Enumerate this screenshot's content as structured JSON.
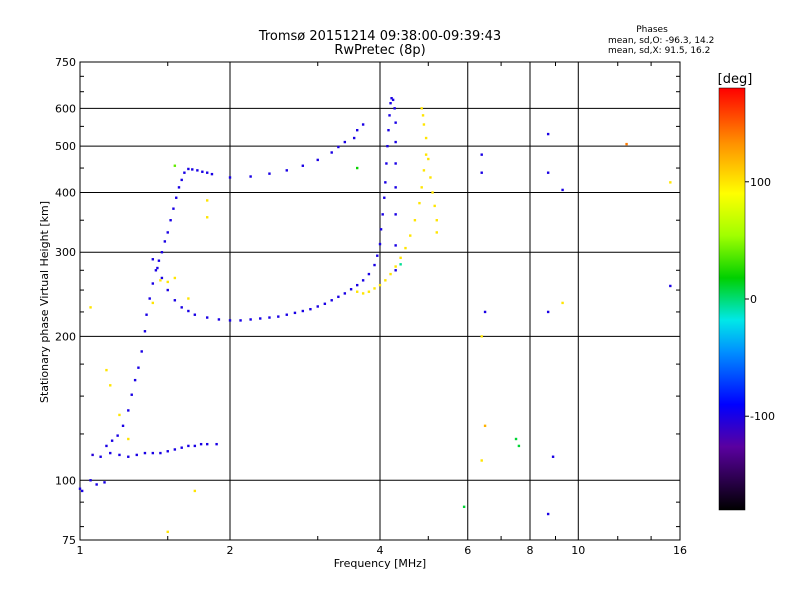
{
  "header": {
    "title": "Tromsø 20151214 09:38:00-09:39:43",
    "subtitle": "RwPretec (8p)"
  },
  "stats": {
    "heading": "Phases",
    "line_o": "mean, sd,O: -96.3, 14.2",
    "line_x": "mean, sd,X:  91.5, 16.2"
  },
  "colorbar": {
    "label": "[deg]",
    "range": [
      -180,
      180
    ],
    "ticks": [
      {
        "value": 100,
        "label": "100"
      },
      {
        "value": 0,
        "label": "0"
      },
      {
        "value": -100,
        "label": "-100"
      }
    ]
  },
  "chart_data": {
    "type": "scatter",
    "title": "Tromsø 20151214 09:38:00-09:39:43",
    "subtitle": "RwPretec (8p)",
    "xlabel": "Frequency [MHz]",
    "ylabel": "Stationary phase Virtual Height [km]",
    "xscale": "log",
    "yscale": "log",
    "xlim": [
      1,
      16
    ],
    "ylim": [
      75,
      750
    ],
    "grid": true,
    "xticks": [
      {
        "value": 1,
        "label": "1"
      },
      {
        "value": 2,
        "label": "2"
      },
      {
        "value": 4,
        "label": "4"
      },
      {
        "value": 6,
        "label": "6"
      },
      {
        "value": 8,
        "label": "8"
      },
      {
        "value": 10,
        "label": "10"
      },
      {
        "value": 16,
        "label": "16"
      }
    ],
    "yticks": [
      {
        "value": 75,
        "label": "75"
      },
      {
        "value": 100,
        "label": "100"
      },
      {
        "value": 200,
        "label": "200"
      },
      {
        "value": 300,
        "label": "300"
      },
      {
        "value": 400,
        "label": "400"
      },
      {
        "value": 500,
        "label": "500"
      },
      {
        "value": 600,
        "label": "600"
      },
      {
        "value": 750,
        "label": "750"
      }
    ],
    "color_scale": {
      "variable": "phase",
      "unit": "deg",
      "min": -180,
      "max": 180
    },
    "series": [
      {
        "points": [
          [
            1.0,
            96,
            -100
          ],
          [
            1.01,
            95,
            -100
          ],
          [
            1.05,
            100,
            -100
          ],
          [
            1.08,
            98,
            -100
          ],
          [
            1.12,
            99,
            -100
          ],
          [
            1.06,
            113,
            -105
          ],
          [
            1.1,
            112,
            -100
          ],
          [
            1.15,
            114,
            -100
          ],
          [
            1.2,
            113,
            -100
          ],
          [
            1.25,
            112,
            -100
          ],
          [
            1.3,
            113,
            -100
          ],
          [
            1.35,
            114,
            -100
          ],
          [
            1.4,
            114,
            -100
          ],
          [
            1.45,
            114,
            -100
          ],
          [
            1.5,
            115,
            -100
          ],
          [
            1.55,
            116,
            -100
          ],
          [
            1.6,
            117,
            -100
          ],
          [
            1.65,
            118,
            -100
          ],
          [
            1.7,
            118,
            -100
          ],
          [
            1.75,
            119,
            -100
          ],
          [
            1.8,
            119,
            -100
          ],
          [
            1.88,
            119,
            -100
          ],
          [
            1.13,
            118,
            -100
          ],
          [
            1.16,
            121,
            -100
          ],
          [
            1.19,
            124,
            -100
          ],
          [
            1.22,
            130,
            -100
          ],
          [
            1.25,
            140,
            -100
          ],
          [
            1.27,
            151,
            -100
          ],
          [
            1.29,
            162,
            -100
          ],
          [
            1.31,
            172,
            -100
          ],
          [
            1.33,
            186,
            -100
          ],
          [
            1.35,
            205,
            -100
          ],
          [
            1.36,
            222,
            -100
          ],
          [
            1.38,
            240,
            -100
          ],
          [
            1.4,
            258,
            -100
          ],
          [
            1.42,
            275,
            -100
          ],
          [
            1.44,
            288,
            -100
          ],
          [
            1.46,
            300,
            -100
          ],
          [
            1.48,
            316,
            -100
          ],
          [
            1.5,
            330,
            -100
          ],
          [
            1.52,
            350,
            -100
          ],
          [
            1.54,
            370,
            -100
          ],
          [
            1.56,
            390,
            -100
          ],
          [
            1.58,
            410,
            -100
          ],
          [
            1.6,
            425,
            -100
          ],
          [
            1.62,
            440,
            -100
          ],
          [
            1.65,
            448,
            -100
          ],
          [
            1.68,
            447,
            -100
          ],
          [
            1.72,
            445,
            -100
          ],
          [
            1.76,
            442,
            -100
          ],
          [
            1.8,
            440,
            -100
          ],
          [
            1.84,
            437,
            -100
          ],
          [
            1.4,
            290,
            -100
          ],
          [
            1.43,
            278,
            -100
          ],
          [
            1.46,
            265,
            -100
          ],
          [
            1.5,
            250,
            -100
          ],
          [
            1.55,
            238,
            -100
          ],
          [
            1.6,
            230,
            -100
          ],
          [
            1.65,
            226,
            -100
          ],
          [
            1.7,
            222,
            -100
          ],
          [
            1.8,
            219,
            -100
          ],
          [
            1.9,
            217,
            -100
          ],
          [
            2.0,
            216,
            -100
          ],
          [
            2.1,
            216,
            -100
          ],
          [
            2.2,
            217,
            -100
          ],
          [
            2.3,
            218,
            -100
          ],
          [
            2.4,
            219,
            -100
          ],
          [
            2.5,
            220,
            -100
          ],
          [
            2.6,
            222,
            -100
          ],
          [
            2.7,
            224,
            -100
          ],
          [
            2.8,
            226,
            -100
          ],
          [
            2.9,
            228,
            -100
          ],
          [
            3.0,
            231,
            -100
          ],
          [
            3.1,
            234,
            -100
          ],
          [
            3.2,
            238,
            -100
          ],
          [
            3.3,
            242,
            -100
          ],
          [
            3.4,
            246,
            -100
          ],
          [
            3.5,
            251,
            -100
          ],
          [
            3.6,
            256,
            -100
          ],
          [
            3.7,
            262,
            -100
          ],
          [
            3.8,
            270,
            -100
          ],
          [
            3.9,
            282,
            -100
          ],
          [
            3.95,
            295,
            -100
          ],
          [
            4.0,
            312,
            -100
          ],
          [
            4.02,
            335,
            -100
          ],
          [
            4.05,
            360,
            -100
          ],
          [
            4.08,
            390,
            -100
          ],
          [
            4.1,
            420,
            -100
          ],
          [
            4.12,
            460,
            -100
          ],
          [
            4.14,
            500,
            -100
          ],
          [
            4.16,
            540,
            -100
          ],
          [
            4.18,
            580,
            -100
          ],
          [
            4.2,
            615,
            -100
          ],
          [
            4.22,
            630,
            -100
          ],
          [
            4.25,
            625,
            -100
          ],
          [
            4.28,
            600,
            -100
          ],
          [
            4.3,
            560,
            -100
          ],
          [
            4.3,
            510,
            -100
          ],
          [
            4.3,
            460,
            -100
          ],
          [
            4.3,
            410,
            -100
          ],
          [
            4.3,
            360,
            -100
          ],
          [
            4.3,
            310,
            -100
          ],
          [
            4.3,
            275,
            -100
          ],
          [
            2.0,
            430,
            -100
          ],
          [
            2.2,
            432,
            -100
          ],
          [
            2.4,
            438,
            -100
          ],
          [
            2.6,
            445,
            -100
          ],
          [
            2.8,
            455,
            -100
          ],
          [
            3.0,
            468,
            -100
          ],
          [
            3.2,
            485,
            -100
          ],
          [
            3.4,
            510,
            -100
          ],
          [
            3.6,
            540,
            -100
          ],
          [
            3.7,
            555,
            -100
          ],
          [
            3.55,
            520,
            -100
          ],
          [
            3.3,
            498,
            -100
          ],
          [
            6.4,
            480,
            -100
          ],
          [
            6.4,
            440,
            -100
          ],
          [
            6.5,
            225,
            -100
          ],
          [
            8.7,
            530,
            -100
          ],
          [
            8.7,
            440,
            -100
          ],
          [
            8.7,
            225,
            -100
          ],
          [
            8.9,
            112,
            -100
          ],
          [
            8.7,
            85,
            -100
          ],
          [
            9.3,
            405,
            -100
          ],
          [
            15.3,
            255,
            -100
          ]
        ]
      },
      {
        "points": [
          [
            3.6,
            248,
            100
          ],
          [
            3.7,
            246,
            100
          ],
          [
            3.8,
            248,
            100
          ],
          [
            3.9,
            252,
            100
          ],
          [
            4.0,
            256,
            100
          ],
          [
            4.1,
            262,
            100
          ],
          [
            4.2,
            270,
            100
          ],
          [
            4.3,
            280,
            100
          ],
          [
            4.4,
            292,
            100
          ],
          [
            4.5,
            306,
            100
          ],
          [
            4.6,
            325,
            100
          ],
          [
            4.7,
            350,
            100
          ],
          [
            4.8,
            380,
            100
          ],
          [
            4.85,
            410,
            100
          ],
          [
            4.9,
            445,
            100
          ],
          [
            4.95,
            480,
            100
          ],
          [
            4.95,
            520,
            100
          ],
          [
            4.9,
            555,
            100
          ],
          [
            4.88,
            580,
            100
          ],
          [
            4.85,
            600,
            100
          ],
          [
            5.0,
            470,
            100
          ],
          [
            5.05,
            430,
            100
          ],
          [
            5.1,
            400,
            100
          ],
          [
            5.15,
            375,
            100
          ],
          [
            5.2,
            350,
            100
          ],
          [
            5.2,
            330,
            100
          ],
          [
            1.4,
            235,
            100
          ],
          [
            1.45,
            262,
            100
          ],
          [
            1.5,
            260,
            100
          ],
          [
            1.55,
            265,
            100
          ],
          [
            1.65,
            240,
            100
          ],
          [
            1.8,
            385,
            100
          ],
          [
            1.8,
            355,
            100
          ],
          [
            1.05,
            230,
            100
          ],
          [
            1.13,
            170,
            100
          ],
          [
            1.15,
            158,
            100
          ],
          [
            1.2,
            137,
            100
          ],
          [
            1.25,
            122,
            100
          ],
          [
            1.5,
            78,
            100
          ],
          [
            1.7,
            95,
            100
          ],
          [
            6.4,
            110,
            100
          ],
          [
            6.4,
            200,
            100
          ],
          [
            6.5,
            130,
            120
          ],
          [
            12.5,
            505,
            140
          ],
          [
            15.3,
            420,
            100
          ],
          [
            9.3,
            235,
            100
          ]
        ]
      },
      {
        "points": [
          [
            5.9,
            88,
            10
          ],
          [
            7.5,
            122,
            10
          ],
          [
            7.6,
            118,
            10
          ],
          [
            4.4,
            283,
            -5
          ],
          [
            3.6,
            450,
            20
          ],
          [
            1.55,
            455,
            40
          ]
        ]
      }
    ]
  }
}
